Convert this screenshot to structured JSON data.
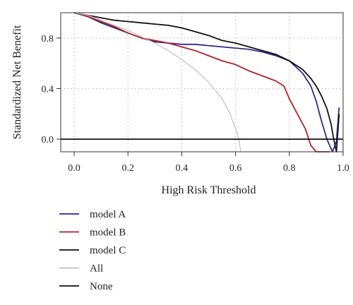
{
  "chart_data": {
    "type": "line",
    "title": "",
    "xlabel": "High Risk Threshold",
    "ylabel": "Standardized Net Benefit",
    "xlim": [
      -0.05,
      1.0
    ],
    "ylim": [
      -0.1,
      1.0
    ],
    "xticks": [
      0.0,
      0.2,
      0.4,
      0.6,
      0.8,
      1.0
    ],
    "xtick_labels": [
      "0.0",
      "0.2",
      "0.4",
      "0.6",
      "0.8",
      "1.0"
    ],
    "yticks": [
      0.0,
      0.4,
      0.8
    ],
    "ytick_labels": [
      "0.0",
      "0.4",
      "0.8"
    ],
    "grid": true,
    "grid_style": "dotted",
    "legend_position": "bottom-left",
    "series": [
      {
        "name": "model A",
        "color": "#2e2a8c",
        "x": [
          0.0,
          0.05,
          0.1,
          0.15,
          0.2,
          0.25,
          0.3,
          0.35,
          0.4,
          0.45,
          0.5,
          0.55,
          0.6,
          0.65,
          0.7,
          0.75,
          0.8,
          0.85,
          0.88,
          0.9,
          0.92,
          0.94,
          0.96,
          0.975,
          0.985
        ],
        "y": [
          1.0,
          0.97,
          0.92,
          0.88,
          0.84,
          0.8,
          0.77,
          0.76,
          0.75,
          0.75,
          0.74,
          0.73,
          0.72,
          0.71,
          0.69,
          0.66,
          0.62,
          0.52,
          0.42,
          0.3,
          0.14,
          0.0,
          -0.1,
          -0.02,
          0.25
        ]
      },
      {
        "name": "model B",
        "color": "#b22222",
        "x": [
          0.0,
          0.05,
          0.1,
          0.15,
          0.2,
          0.25,
          0.3,
          0.35,
          0.4,
          0.45,
          0.5,
          0.55,
          0.6,
          0.65,
          0.7,
          0.75,
          0.78,
          0.8,
          0.83,
          0.86,
          0.88,
          0.9,
          0.92,
          0.95
        ],
        "y": [
          1.0,
          0.97,
          0.93,
          0.89,
          0.84,
          0.8,
          0.78,
          0.76,
          0.73,
          0.7,
          0.66,
          0.62,
          0.59,
          0.54,
          0.5,
          0.46,
          0.42,
          0.32,
          0.2,
          0.08,
          -0.05,
          -0.1,
          -0.1,
          -0.1
        ]
      },
      {
        "name": "model C",
        "color": "#111111",
        "x": [
          0.0,
          0.05,
          0.1,
          0.15,
          0.2,
          0.25,
          0.3,
          0.35,
          0.4,
          0.45,
          0.5,
          0.55,
          0.6,
          0.65,
          0.7,
          0.75,
          0.8,
          0.85,
          0.88,
          0.9,
          0.92,
          0.94,
          0.955,
          0.965,
          0.975,
          0.985
        ],
        "y": [
          1.0,
          0.98,
          0.96,
          0.94,
          0.93,
          0.92,
          0.91,
          0.9,
          0.88,
          0.85,
          0.82,
          0.78,
          0.76,
          0.73,
          0.7,
          0.67,
          0.62,
          0.55,
          0.48,
          0.42,
          0.34,
          0.24,
          0.12,
          0.0,
          -0.1,
          0.2
        ]
      },
      {
        "name": "All",
        "color": "#bfbfbf",
        "x": [
          0.0,
          0.05,
          0.1,
          0.15,
          0.2,
          0.25,
          0.3,
          0.35,
          0.4,
          0.45,
          0.5,
          0.55,
          0.58,
          0.6,
          0.61,
          0.62
        ],
        "y": [
          1.0,
          0.98,
          0.94,
          0.9,
          0.86,
          0.81,
          0.76,
          0.7,
          0.63,
          0.55,
          0.45,
          0.32,
          0.2,
          0.08,
          0.02,
          -0.1
        ]
      },
      {
        "name": "None",
        "color": "#111111",
        "x": [
          -0.05,
          1.0
        ],
        "y": [
          0.0,
          0.0
        ]
      }
    ]
  }
}
